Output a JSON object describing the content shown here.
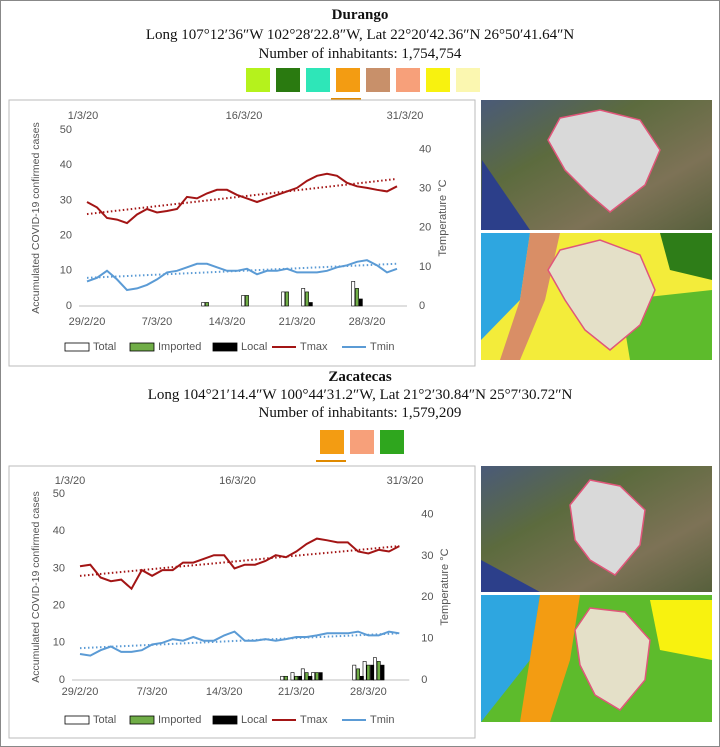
{
  "chart_data": [
    {
      "type": "combo",
      "title": "Durango",
      "subtitle": "Long 107°12′36″W 102°28′22.8″W, Lat 22°20′42.36″N 26°50′41.64″N",
      "note": "Number of inhabitants: 1,754,754",
      "categories": [
        "29/2/20",
        null,
        null,
        null,
        null,
        null,
        null,
        "7/3/20",
        null,
        null,
        null,
        null,
        null,
        null,
        "14/3/20",
        null,
        null,
        null,
        null,
        null,
        null,
        "21/3/20",
        null,
        null,
        null,
        null,
        null,
        null,
        "28/3/20",
        null,
        null,
        null
      ],
      "x2categories": [
        null,
        "1/3/20",
        null,
        null,
        null,
        null,
        null,
        null,
        null,
        null,
        null,
        null,
        null,
        null,
        null,
        null,
        "16/3/20",
        null,
        null,
        null,
        null,
        null,
        null,
        null,
        null,
        null,
        null,
        null,
        null,
        null,
        null,
        "31/3/20"
      ],
      "ylabel": "Accumulated COVID-19 confirmed cases",
      "y2label": "Temperature °C",
      "ylim": [
        0,
        50
      ],
      "yticks": [
        0,
        10,
        20,
        30,
        40,
        50
      ],
      "y2lim": [
        0,
        45
      ],
      "y2ticks": [
        0,
        10,
        20,
        30,
        40
      ],
      "series": [
        {
          "name": "Total",
          "type": "bar",
          "color": "#ffffff",
          "values": [
            null,
            null,
            null,
            null,
            null,
            null,
            null,
            null,
            null,
            null,
            null,
            null,
            1,
            null,
            null,
            null,
            3,
            null,
            null,
            null,
            4,
            null,
            5,
            null,
            null,
            null,
            null,
            7,
            null,
            null,
            null,
            null
          ]
        },
        {
          "name": "Imported",
          "type": "bar",
          "color": "#70ad47",
          "values": [
            null,
            null,
            null,
            null,
            null,
            null,
            null,
            null,
            null,
            null,
            null,
            null,
            1,
            null,
            null,
            null,
            3,
            null,
            null,
            null,
            4,
            null,
            4,
            null,
            null,
            null,
            null,
            5,
            null,
            null,
            null,
            null
          ]
        },
        {
          "name": "Local",
          "type": "bar",
          "color": "#000000",
          "values": [
            null,
            null,
            null,
            null,
            null,
            null,
            null,
            null,
            null,
            null,
            null,
            null,
            null,
            null,
            null,
            null,
            null,
            null,
            null,
            null,
            null,
            null,
            1,
            null,
            null,
            null,
            null,
            2,
            null,
            null,
            null,
            null
          ]
        },
        {
          "name": "Tmax",
          "type": "line",
          "axis": "y2",
          "color": "#a31515",
          "trendline": [
            23.5,
            32.5
          ],
          "values": [
            26.6,
            25.2,
            22.5,
            22.1,
            21.2,
            23.4,
            24.8,
            23.9,
            24.3,
            24.8,
            27.9,
            27.5,
            28.8,
            29.7,
            29.7,
            28.4,
            27.5,
            26.6,
            27.5,
            28.4,
            29.3,
            30.2,
            32,
            33.3,
            33.8,
            33.3,
            31.5,
            30.6,
            30.2,
            29.7,
            29.3,
            30.6
          ]
        },
        {
          "name": "Tmin",
          "type": "line",
          "axis": "y2",
          "color": "#5b9bd5",
          "trendline": [
            7.2,
            10.8
          ],
          "values": [
            6.3,
            7.2,
            9,
            6.8,
            4.1,
            4.5,
            5.4,
            6.8,
            8.6,
            9,
            9.9,
            10.8,
            10.8,
            9.9,
            9,
            9,
            9.5,
            8.1,
            9,
            9,
            9.5,
            8.6,
            8.6,
            8.6,
            9,
            9.9,
            10.4,
            11.3,
            11.7,
            10.4,
            8.6,
            9.5
          ]
        }
      ]
    },
    {
      "type": "combo",
      "title": "Zacatecas",
      "subtitle": "Long 104°21′14.4″W 100°44′31.2″W, Lat 21°2′30.84″N 25°7′30.72″N",
      "note": "Number of inhabitants: 1,579,209",
      "categories": [
        "29/2/20",
        null,
        null,
        null,
        null,
        null,
        null,
        "7/3/20",
        null,
        null,
        null,
        null,
        null,
        null,
        "14/3/20",
        null,
        null,
        null,
        null,
        null,
        null,
        "21/3/20",
        null,
        null,
        null,
        null,
        null,
        null,
        "28/3/20",
        null,
        null,
        null
      ],
      "x2categories": [
        null,
        "1/3/20",
        null,
        null,
        null,
        null,
        null,
        null,
        null,
        null,
        null,
        null,
        null,
        null,
        null,
        null,
        "16/3/20",
        null,
        null,
        null,
        null,
        null,
        null,
        null,
        null,
        null,
        null,
        null,
        null,
        null,
        null,
        "31/3/20"
      ],
      "ylabel": "Accumulated COVID-19 confirmed cases",
      "y2label": "Temperature °C",
      "ylim": [
        0,
        50
      ],
      "yticks": [
        0,
        10,
        20,
        30,
        40,
        50
      ],
      "y2lim": [
        0,
        45
      ],
      "y2ticks": [
        0,
        10,
        20,
        30,
        40
      ],
      "series": [
        {
          "name": "Total",
          "type": "bar",
          "color": "#ffffff",
          "values": [
            null,
            null,
            null,
            null,
            null,
            null,
            null,
            null,
            null,
            null,
            null,
            null,
            null,
            null,
            null,
            null,
            null,
            null,
            null,
            null,
            1,
            2,
            3,
            2,
            null,
            null,
            null,
            4,
            5,
            6,
            null,
            null
          ]
        },
        {
          "name": "Imported",
          "type": "bar",
          "color": "#70ad47",
          "values": [
            null,
            null,
            null,
            null,
            null,
            null,
            null,
            null,
            null,
            null,
            null,
            null,
            null,
            null,
            null,
            null,
            null,
            null,
            null,
            null,
            1,
            1,
            2,
            2,
            null,
            null,
            null,
            3,
            4,
            5,
            null,
            null
          ]
        },
        {
          "name": "Local",
          "type": "bar",
          "color": "#000000",
          "values": [
            null,
            null,
            null,
            null,
            null,
            null,
            null,
            null,
            null,
            null,
            null,
            null,
            null,
            null,
            null,
            null,
            null,
            null,
            null,
            null,
            null,
            1,
            1,
            2,
            null,
            null,
            null,
            1,
            4,
            4,
            null,
            null
          ]
        },
        {
          "name": "Tmax",
          "type": "line",
          "axis": "y2",
          "color": "#a31515",
          "trendline": [
            25.2,
            32.4
          ],
          "values": [
            27.5,
            27.9,
            24.8,
            23.9,
            24.3,
            22.1,
            26.6,
            25.2,
            26.6,
            26.6,
            28.4,
            28.4,
            29.3,
            30.2,
            30.2,
            27,
            27.9,
            27.9,
            28.8,
            30.2,
            29.7,
            31.1,
            32.9,
            34.2,
            33.8,
            33.3,
            33.3,
            31.1,
            30.6,
            31.5,
            31.1,
            32.4
          ]
        },
        {
          "name": "Tmin",
          "type": "line",
          "axis": "y2",
          "color": "#5b9bd5",
          "trendline": [
            7.7,
            11.3
          ],
          "values": [
            6.3,
            5.9,
            7.2,
            8.1,
            6.8,
            6.8,
            7.2,
            8.6,
            9,
            9.9,
            9.5,
            10.4,
            9.5,
            9.5,
            10.8,
            11.7,
            9.5,
            9.5,
            9.9,
            9.5,
            9.9,
            10.4,
            10.4,
            10.8,
            11.3,
            11.3,
            11.3,
            11.7,
            10.8,
            10.8,
            11.7,
            11.3
          ]
        }
      ]
    }
  ]
}
